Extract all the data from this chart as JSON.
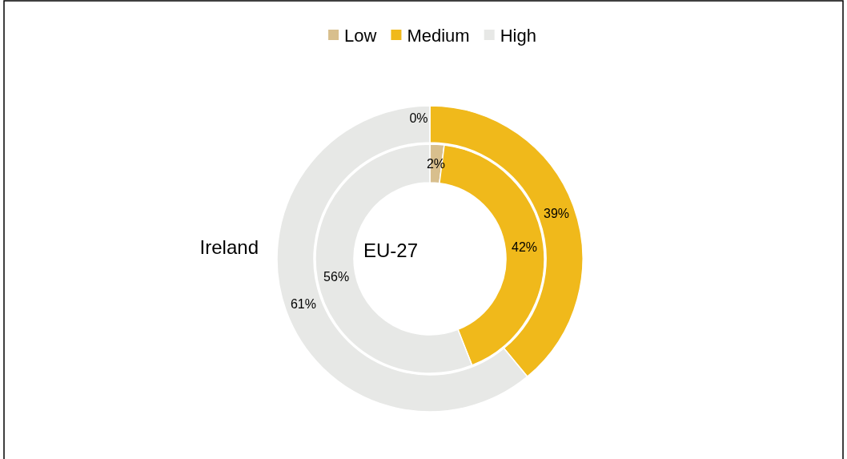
{
  "chart_data": {
    "type": "donut",
    "categories": [
      "Low",
      "Medium",
      "High"
    ],
    "colors": [
      "#d8bf8d",
      "#f0b91b",
      "#e7e8e6"
    ],
    "legend": "top",
    "series": [
      {
        "name": "Ireland",
        "values": [
          0,
          39,
          61
        ],
        "value_labels": [
          "0%",
          "39%",
          "61%"
        ]
      },
      {
        "name": "EU-27",
        "values": [
          2,
          42,
          56
        ],
        "value_labels": [
          "2%",
          "42%",
          "56%"
        ]
      }
    ]
  }
}
